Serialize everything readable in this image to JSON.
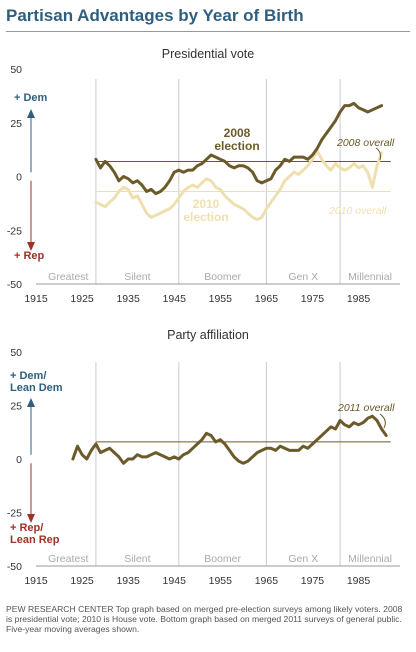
{
  "title": "Partisan Advantages by Year of Birth",
  "colors": {
    "axis_2008": "#6b5a2a",
    "line_2008": "#6b5a2a",
    "line_2010": "#f0dfae",
    "line_affil": "#6b5a2a",
    "dem": "#2f5f7f",
    "rep": "#a0312a",
    "band": "#cccccc",
    "gen": "#aaaaaa"
  },
  "footer": "PEW RESEARCH CENTER Top graph based on merged pre-election surveys among likely voters. 2008 is presidential vote; 2010 is House vote. Bottom graph based on merged 2011 surveys of general public. Five-year moving averages shown.",
  "chart_data": [
    {
      "type": "line",
      "title": "Presidential vote",
      "x_ticks": [
        1915,
        1925,
        1935,
        1945,
        1955,
        1965,
        1975,
        1985
      ],
      "y_ticks": [
        50,
        25,
        0,
        -25,
        -50
      ],
      "ylim": [
        -50,
        50
      ],
      "xlim": [
        1915,
        1994
      ],
      "up_label": "+ Dem",
      "down_label": "+ Rep",
      "generations": [
        "Greatest",
        "Silent",
        "Boomer",
        "Gen X",
        "Millennial"
      ],
      "generation_boundaries": [
        1928,
        1946,
        1965,
        1981
      ],
      "reference_lines": [
        {
          "label": "2008 overall",
          "value": 7
        },
        {
          "label": "2010 overall",
          "value": -7
        }
      ],
      "series": [
        {
          "name": "2008 election",
          "x": [
            1928,
            1929,
            1930,
            1931,
            1932,
            1933,
            1934,
            1935,
            1936,
            1937,
            1938,
            1939,
            1940,
            1941,
            1942,
            1943,
            1944,
            1945,
            1946,
            1947,
            1948,
            1949,
            1950,
            1951,
            1952,
            1953,
            1954,
            1955,
            1956,
            1957,
            1958,
            1959,
            1960,
            1961,
            1962,
            1963,
            1964,
            1965,
            1966,
            1967,
            1968,
            1969,
            1970,
            1971,
            1972,
            1973,
            1974,
            1975,
            1976,
            1977,
            1978,
            1979,
            1980,
            1981,
            1982,
            1983,
            1984,
            1985,
            1986,
            1987,
            1988,
            1989,
            1990
          ],
          "values": [
            8,
            4,
            7,
            5,
            2,
            -2,
            0,
            -1,
            -3,
            -2,
            -4,
            -7,
            -6,
            -8,
            -7,
            -5,
            -2,
            2,
            3,
            2,
            3,
            3,
            5,
            6,
            8,
            10,
            9,
            8,
            7,
            5,
            4,
            5,
            5,
            4,
            2,
            -2,
            -3,
            -2,
            -1,
            3,
            5,
            8,
            7,
            9,
            9,
            9,
            8,
            10,
            13,
            17,
            20,
            23,
            26,
            30,
            33,
            33,
            34,
            32,
            31,
            30,
            31,
            32,
            33
          ]
        },
        {
          "name": "2010 election",
          "x": [
            1928,
            1929,
            1930,
            1931,
            1932,
            1933,
            1934,
            1935,
            1936,
            1937,
            1938,
            1939,
            1940,
            1941,
            1942,
            1943,
            1944,
            1945,
            1946,
            1947,
            1948,
            1949,
            1950,
            1951,
            1952,
            1953,
            1954,
            1955,
            1956,
            1957,
            1958,
            1959,
            1960,
            1961,
            1962,
            1963,
            1964,
            1965,
            1966,
            1967,
            1968,
            1969,
            1970,
            1971,
            1972,
            1973,
            1974,
            1975,
            1976,
            1977,
            1978,
            1979,
            1980,
            1981,
            1982,
            1983,
            1984,
            1985,
            1986,
            1987,
            1988,
            1989,
            1990
          ],
          "values": [
            -12,
            -13,
            -14,
            -12,
            -10,
            -7,
            -5,
            -6,
            -10,
            -9,
            -13,
            -17,
            -19,
            -18,
            -17,
            -16,
            -15,
            -13,
            -10,
            -7,
            -5,
            -4,
            -5,
            -3,
            -1,
            -2,
            -5,
            -6,
            -9,
            -11,
            -13,
            -14,
            -15,
            -17,
            -19,
            -20,
            -19,
            -15,
            -12,
            -9,
            -6,
            -2,
            0,
            2,
            1,
            3,
            5,
            8,
            12,
            8,
            5,
            3,
            6,
            4,
            3,
            4,
            6,
            4,
            5,
            2,
            -5,
            5,
            11
          ]
        }
      ],
      "annotations": [
        "2008\nelection",
        "2010\nelection",
        "2008 overall",
        "2010 overall"
      ]
    },
    {
      "type": "line",
      "title": "Party affiliation",
      "x_ticks": [
        1915,
        1925,
        1935,
        1945,
        1955,
        1965,
        1975,
        1985
      ],
      "y_ticks": [
        50,
        25,
        0,
        -25,
        -50
      ],
      "ylim": [
        -50,
        50
      ],
      "xlim": [
        1915,
        1994
      ],
      "up_label": "+ Dem/\nLean Dem",
      "down_label": "+ Rep/\nLean Rep",
      "generations": [
        "Greatest",
        "Silent",
        "Boomer",
        "Gen X",
        "Millennial"
      ],
      "generation_boundaries": [
        1928,
        1946,
        1965,
        1981
      ],
      "reference_lines": [
        {
          "label": "2011 overall",
          "value": 8
        }
      ],
      "series": [
        {
          "name": "",
          "x": [
            1923,
            1924,
            1925,
            1926,
            1927,
            1928,
            1929,
            1930,
            1931,
            1932,
            1933,
            1934,
            1935,
            1936,
            1937,
            1938,
            1939,
            1940,
            1941,
            1942,
            1943,
            1944,
            1945,
            1946,
            1947,
            1948,
            1949,
            1950,
            1951,
            1952,
            1953,
            1954,
            1955,
            1956,
            1957,
            1958,
            1959,
            1960,
            1961,
            1962,
            1963,
            1964,
            1965,
            1966,
            1967,
            1968,
            1969,
            1970,
            1971,
            1972,
            1973,
            1974,
            1975,
            1976,
            1977,
            1978,
            1979,
            1980,
            1981,
            1982,
            1983,
            1984,
            1985,
            1986,
            1987,
            1988,
            1989,
            1990,
            1991
          ],
          "values": [
            0,
            6,
            2,
            0,
            4,
            7,
            3,
            4,
            5,
            3,
            1,
            -2,
            0,
            0,
            2,
            1,
            1,
            2,
            3,
            2,
            1,
            0,
            1,
            0,
            2,
            3,
            5,
            7,
            9,
            12,
            11,
            8,
            9,
            7,
            4,
            1,
            -1,
            -2,
            -1,
            1,
            3,
            4,
            5,
            5,
            4,
            6,
            5,
            4,
            4,
            4,
            6,
            5,
            7,
            9,
            11,
            13,
            15,
            14,
            18,
            16,
            15,
            17,
            16,
            17,
            19,
            20,
            18,
            14,
            11
          ]
        }
      ],
      "annotations": [
        "2011 overall"
      ]
    }
  ]
}
